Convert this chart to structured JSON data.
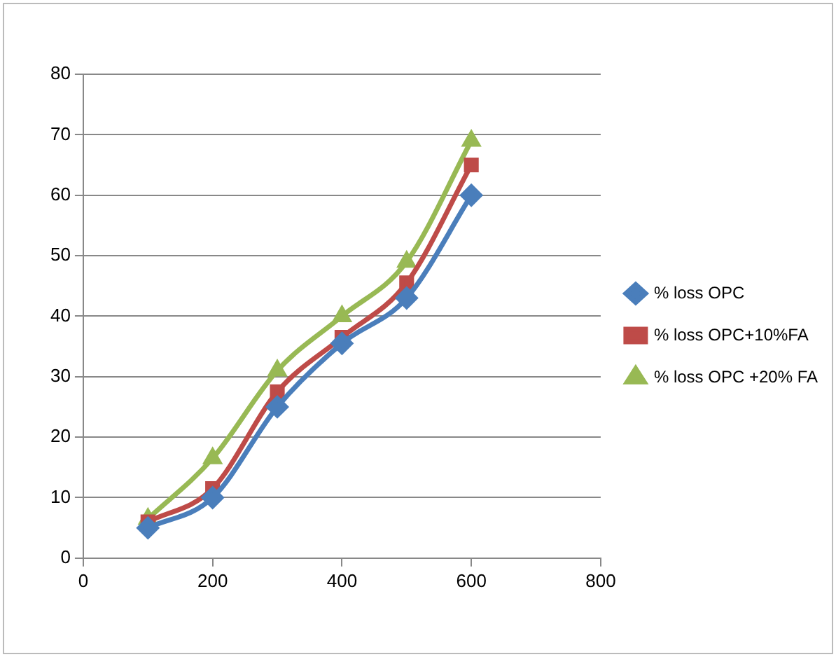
{
  "chart_data": {
    "type": "line",
    "x": [
      100,
      200,
      300,
      400,
      500,
      600
    ],
    "series": [
      {
        "name": "% loss OPC",
        "color": "#4a7ebb",
        "marker": "diamond",
        "values": [
          5,
          10,
          25,
          35.5,
          43,
          60
        ]
      },
      {
        "name": "% loss OPC+10%FA",
        "color": "#be4b48",
        "marker": "square",
        "values": [
          6,
          11.5,
          27.5,
          36.5,
          45.5,
          65
        ]
      },
      {
        "name": "% loss OPC +20% FA",
        "color": "#98b954",
        "marker": "triangle",
        "values": [
          6.5,
          16.5,
          31,
          40,
          49,
          69
        ]
      }
    ],
    "xlim": [
      0,
      800
    ],
    "xticks": [
      0,
      200,
      400,
      600,
      800
    ],
    "ylim": [
      0,
      80
    ],
    "yticks": [
      0,
      10,
      20,
      30,
      40,
      50,
      60,
      70,
      80
    ],
    "grid": "y",
    "legend": "right",
    "line_style": "solid"
  }
}
